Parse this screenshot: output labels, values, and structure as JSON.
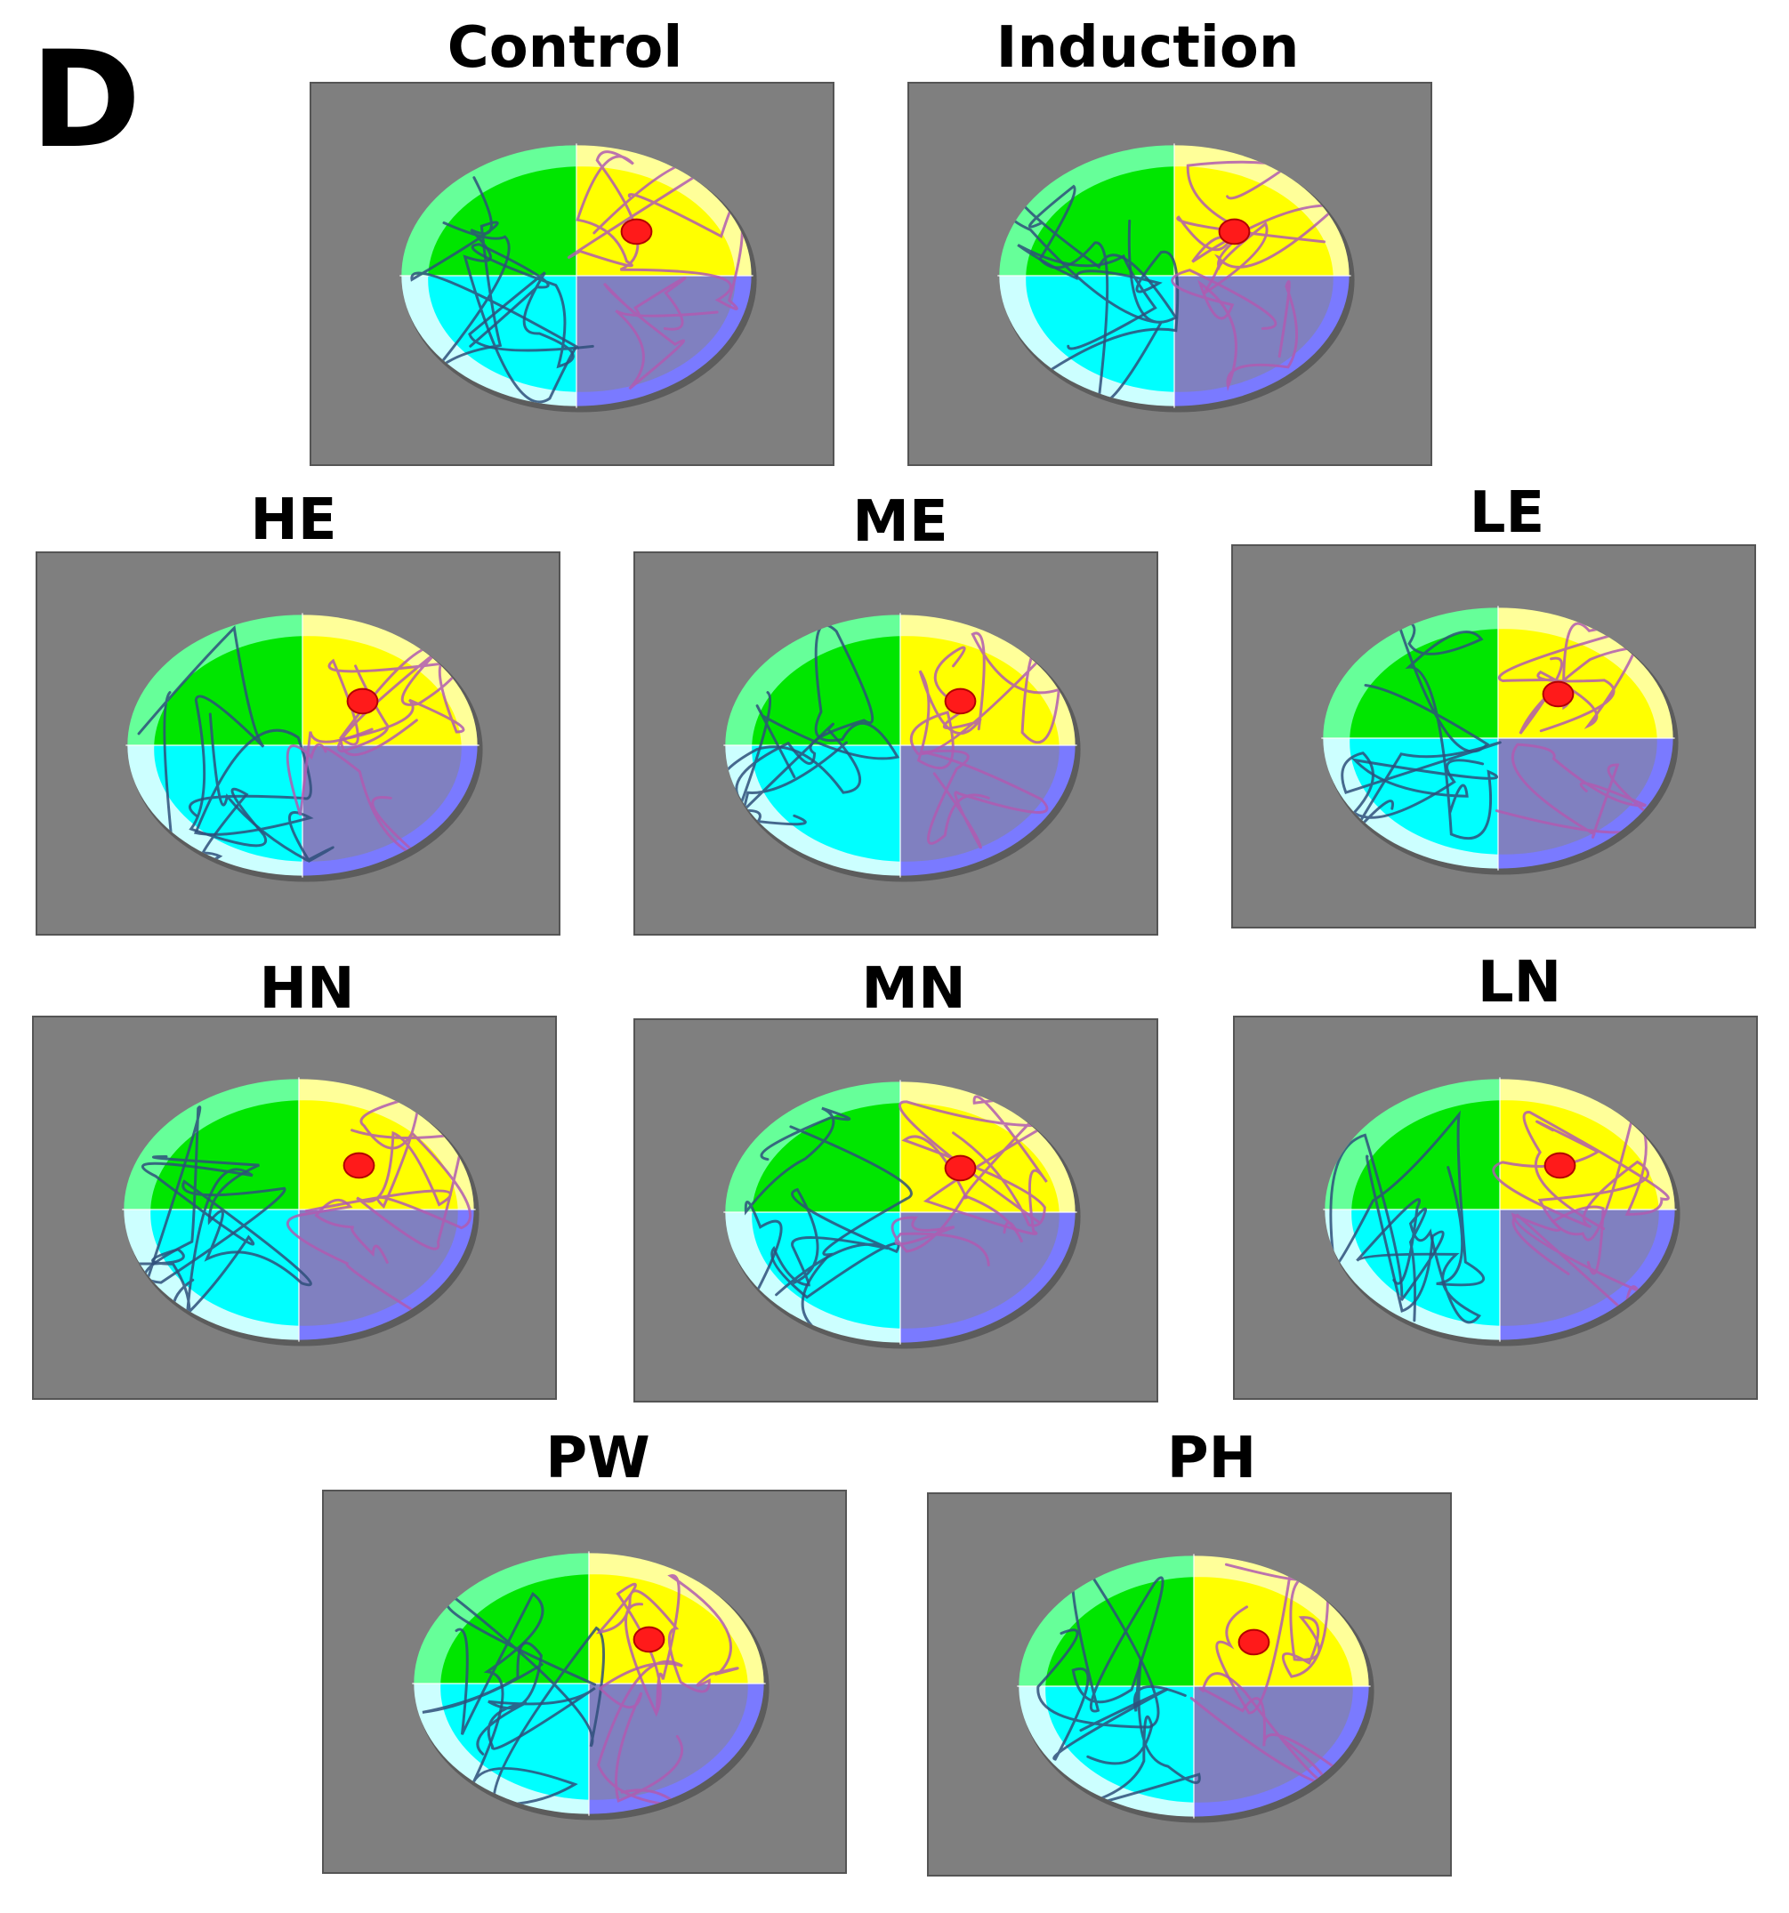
{
  "figure": {
    "panel_letter": "D",
    "panels": [
      {
        "id": "control",
        "label": "Control"
      },
      {
        "id": "induction",
        "label": "Induction"
      },
      {
        "id": "he",
        "label": "HE"
      },
      {
        "id": "me",
        "label": "ME"
      },
      {
        "id": "le",
        "label": "LE"
      },
      {
        "id": "hn",
        "label": "HN"
      },
      {
        "id": "mn",
        "label": "MN"
      },
      {
        "id": "ln",
        "label": "LN"
      },
      {
        "id": "pw",
        "label": "PW"
      },
      {
        "id": "ph",
        "label": "PH"
      }
    ],
    "colors": {
      "background": "#7f7f7f",
      "quadrant_nw": "#00e600",
      "quadrant_ne": "#ffff00",
      "quadrant_sw": "#00ffff",
      "quadrant_se": "#8080c0",
      "rim_nw": "#66ff99",
      "rim_ne": "#ffff99",
      "rim_sw": "#ccffff",
      "rim_se": "#7a7aff",
      "platform": "#ff1a1a",
      "path_dark": "#2e4f7a",
      "path_purple": "#b05ab0"
    }
  }
}
